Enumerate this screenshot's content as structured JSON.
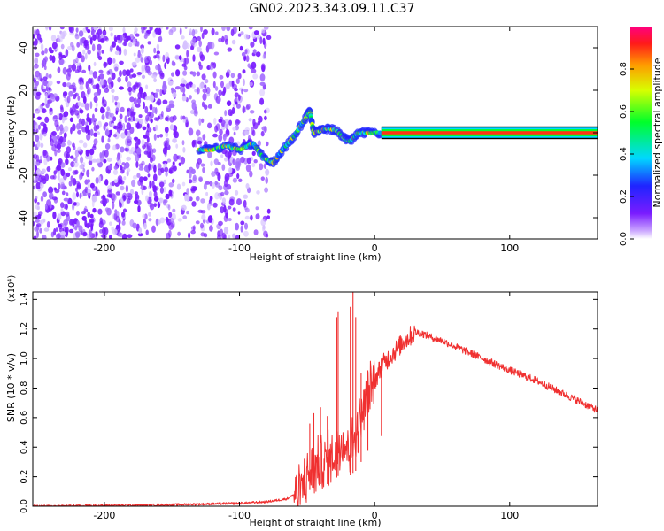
{
  "title": "GN02.2023.343.09.11.C37",
  "colors": {
    "snr_line": "#f03030",
    "spectrogram_scatter": "#7f2fff",
    "band_core": "#ff1030"
  },
  "chart_data": [
    {
      "type": "heatmap",
      "name": "spectrogram",
      "xlabel": "Height of straight line (km)",
      "ylabel": "Frequency (Hz)",
      "xlim": [
        -253,
        165
      ],
      "ylim": [
        -50,
        50
      ],
      "xticks": [
        -200,
        -100,
        0,
        100
      ],
      "yticks": [
        -40,
        -20,
        0,
        20,
        40
      ],
      "grid": false,
      "colorbar": {
        "label": "Normalized spectral amplitude",
        "range": [
          0.0,
          1.0
        ],
        "ticks": [
          0.0,
          0.2,
          0.4,
          0.6,
          0.8
        ],
        "colormap": "rainbow (purple → blue → cyan → green → yellow → red → pink)"
      },
      "noise_region_km": [
        -253,
        -78
      ],
      "strong_band": {
        "x_start_km": 5,
        "x_end_km": 165,
        "frequency_hz": 0,
        "halfwidth_hz": 1.5,
        "amplitude": 0.9
      },
      "signal_track": [
        {
          "x": -130,
          "f": -8
        },
        {
          "x": -120,
          "f": -8
        },
        {
          "x": -110,
          "f": -6
        },
        {
          "x": -100,
          "f": -8
        },
        {
          "x": -90,
          "f": -5
        },
        {
          "x": -82,
          "f": -12
        },
        {
          "x": -75,
          "f": -14
        },
        {
          "x": -68,
          "f": -8
        },
        {
          "x": -60,
          "f": -2
        },
        {
          "x": -52,
          "f": 6
        },
        {
          "x": -48,
          "f": 10
        },
        {
          "x": -45,
          "f": 0
        },
        {
          "x": -40,
          "f": 1
        },
        {
          "x": -35,
          "f": 2
        },
        {
          "x": -28,
          "f": 1
        },
        {
          "x": -22,
          "f": -3
        },
        {
          "x": -18,
          "f": -4
        },
        {
          "x": -12,
          "f": 0
        },
        {
          "x": -5,
          "f": 0
        },
        {
          "x": 5,
          "f": 0
        }
      ]
    },
    {
      "type": "line",
      "name": "snr",
      "xlabel": "Height of straight line (km)",
      "ylabel": "SNR (10 * v/v)",
      "y_multiplier": "(x10⁴)",
      "xlim": [
        -253,
        165
      ],
      "ylim": [
        0.0,
        1.45
      ],
      "xticks": [
        -200,
        -100,
        0,
        100
      ],
      "yticks": [
        0.0,
        0.2,
        0.4,
        0.6,
        0.8,
        1.0,
        1.2,
        1.4
      ],
      "ytick_labels": [
        "0.0",
        "0.2",
        "0.4",
        "0.6",
        "0.8",
        "1.0",
        "1.2",
        "1.4"
      ],
      "grid": false,
      "series": [
        {
          "x": [
            -253,
            -200,
            -150,
            -100,
            -80,
            -65,
            -55,
            -50,
            -45,
            -40,
            -35,
            -30,
            -25,
            -20,
            -15,
            -10,
            -5,
            0,
            5,
            10,
            15,
            20,
            25,
            30,
            35,
            40,
            50,
            60,
            80,
            100,
            120,
            140,
            165
          ],
          "values": [
            0.0,
            0.005,
            0.01,
            0.02,
            0.03,
            0.05,
            0.1,
            0.2,
            0.25,
            0.3,
            0.3,
            0.35,
            0.45,
            0.4,
            0.45,
            0.6,
            0.75,
            0.85,
            0.95,
            1.0,
            1.05,
            1.1,
            1.14,
            1.18,
            1.17,
            1.15,
            1.12,
            1.08,
            1.0,
            0.92,
            0.85,
            0.76,
            0.65
          ],
          "spikes": [
            {
              "x": -48,
              "y": 0.56
            },
            {
              "x": -45,
              "y": 0.63
            },
            {
              "x": -40,
              "y": 0.67
            },
            {
              "x": -35,
              "y": 0.61
            },
            {
              "x": -28,
              "y": 1.28
            },
            {
              "x": -27,
              "y": 1.32
            },
            {
              "x": -18,
              "y": 1.35
            },
            {
              "x": -16,
              "y": 1.45
            },
            {
              "x": -14,
              "y": 1.28
            },
            {
              "x": -10,
              "y": 0.9
            },
            {
              "x": -5,
              "y": 0.92
            },
            {
              "x": 5,
              "y": 1.0
            }
          ]
        }
      ]
    }
  ]
}
